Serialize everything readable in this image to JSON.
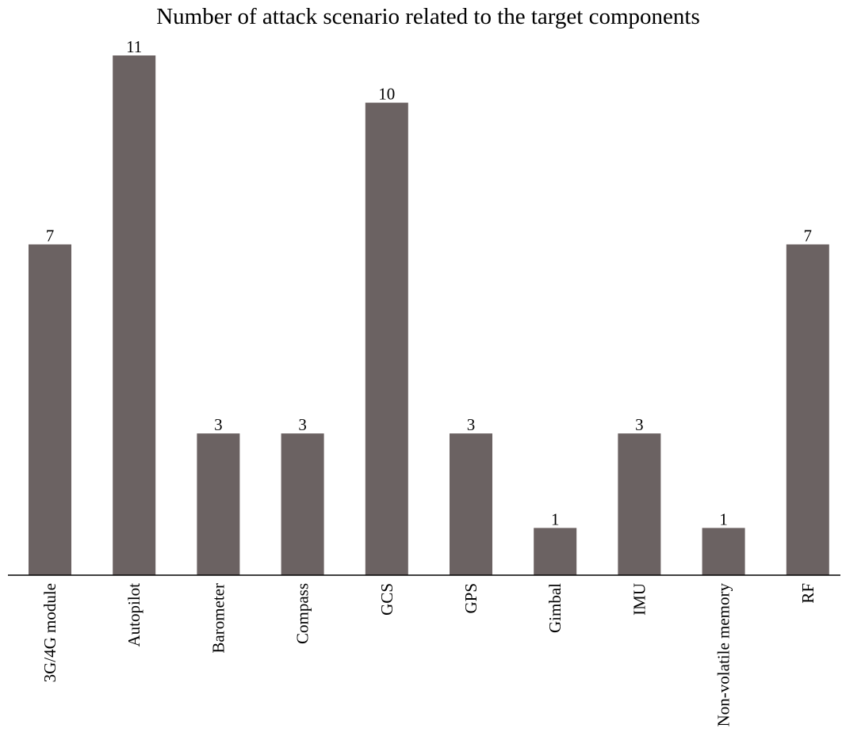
{
  "chart_data": {
    "type": "bar",
    "title": "Number of attack scenario related to the target components",
    "xlabel": "",
    "ylabel": "",
    "categories": [
      "3G/4G module",
      "Autopilot",
      "Barometer",
      "Compass",
      "GCS",
      "GPS",
      "Gimbal",
      "IMU",
      "Non-volatile memory",
      "RF"
    ],
    "values": [
      7,
      11,
      3,
      3,
      10,
      3,
      1,
      3,
      1,
      7
    ],
    "ylim": [
      0,
      11
    ],
    "grid": false,
    "legend": "none",
    "bar_color": "#6b6262",
    "axis_color": "#000000",
    "tick_label_rotation": "vertical"
  }
}
